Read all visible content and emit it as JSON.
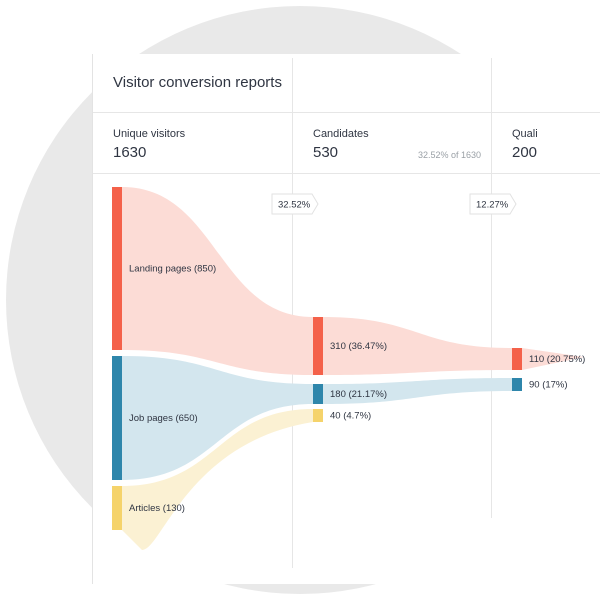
{
  "report": {
    "title": "Visitor conversion reports"
  },
  "columns": [
    {
      "label": "Unique visitors",
      "value": "1630",
      "sub": ""
    },
    {
      "label": "Candidates",
      "value": "530",
      "sub": "32.52% of 1630"
    },
    {
      "label": "Quali",
      "value": "200",
      "sub": ""
    }
  ],
  "badges": [
    "32.52%",
    "12.27%"
  ],
  "colors": {
    "landing": "#f4614a",
    "landing_flow": "#fcdcd6",
    "job": "#2e86ab",
    "job_flow": "#d3e6ee",
    "articles": "#f5d36b",
    "articles_flow": "#fbf1d3"
  },
  "chart_data": {
    "type": "sankey",
    "stages": [
      "Unique visitors",
      "Candidates",
      "Quali"
    ],
    "nodes": [
      {
        "id": "landing",
        "stage": 0,
        "label": "Landing pages (850)",
        "value": 850,
        "color": "#f4614a"
      },
      {
        "id": "job",
        "stage": 0,
        "label": "Job pages (650)",
        "value": 650,
        "color": "#2e86ab"
      },
      {
        "id": "articles",
        "stage": 0,
        "label": "Articles (130)",
        "value": 130,
        "color": "#f5d36b"
      },
      {
        "id": "c_landing",
        "stage": 1,
        "label": "310 (36.47%)",
        "value": 310,
        "color": "#f4614a"
      },
      {
        "id": "c_job",
        "stage": 1,
        "label": "180 (21.17%)",
        "value": 180,
        "color": "#2e86ab"
      },
      {
        "id": "c_articles",
        "stage": 1,
        "label": "40 (4.7%)",
        "value": 40,
        "color": "#f5d36b"
      },
      {
        "id": "q_landing",
        "stage": 2,
        "label": "110 (20.75%)",
        "value": 110,
        "color": "#f4614a"
      },
      {
        "id": "q_job",
        "stage": 2,
        "label": "90 (17%)",
        "value": 90,
        "color": "#2e86ab"
      }
    ],
    "links": [
      {
        "source": "landing",
        "target": "c_landing",
        "value": 310
      },
      {
        "source": "job",
        "target": "c_job",
        "value": 180
      },
      {
        "source": "articles",
        "target": "c_articles",
        "value": 40
      },
      {
        "source": "c_landing",
        "target": "q_landing",
        "value": 110
      },
      {
        "source": "c_job",
        "target": "q_job",
        "value": 90
      }
    ],
    "stage_conversion": [
      "32.52%",
      "12.27%"
    ]
  }
}
